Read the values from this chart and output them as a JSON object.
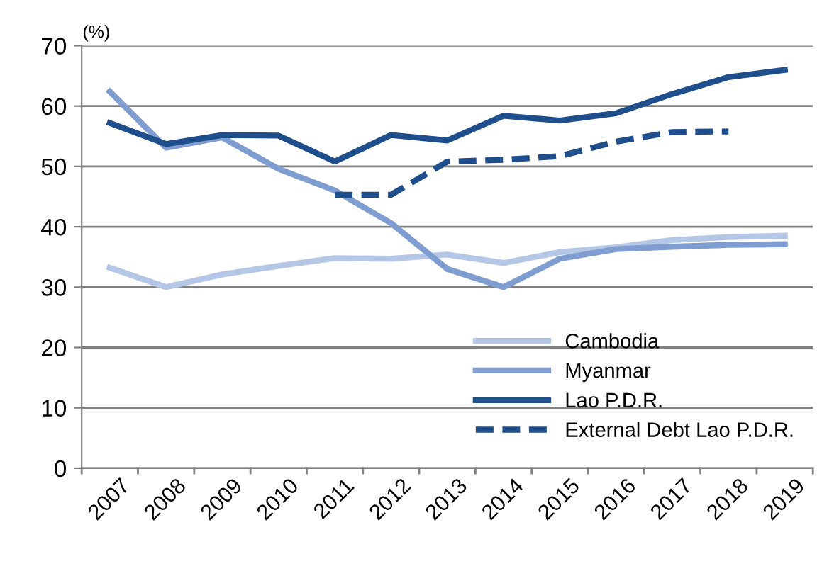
{
  "chart_data": {
    "type": "line",
    "ylabel": "(%)",
    "categories": [
      "2007",
      "2008",
      "2009",
      "2010",
      "2011",
      "2012",
      "2013",
      "2014",
      "2015",
      "2016",
      "2017",
      "2018",
      "2019"
    ],
    "series": [
      {
        "name": "Cambodia",
        "color": "#b4c7e7",
        "values": [
          33.2,
          30.0,
          32.1,
          33.5,
          34.8,
          34.7,
          35.4,
          34.0,
          35.8,
          36.6,
          37.8,
          38.3,
          38.5
        ]
      },
      {
        "name": "Myanmar",
        "color": "#7f9dd0",
        "values": [
          62.4,
          53.1,
          54.8,
          49.6,
          46.0,
          40.6,
          33.0,
          30.0,
          34.7,
          36.3,
          36.7,
          37.0,
          37.1
        ]
      },
      {
        "name": "Lao P.D.R.",
        "color": "#1f4e8c",
        "values": [
          57.2,
          53.7,
          55.2,
          55.1,
          50.8,
          55.2,
          54.3,
          58.4,
          57.6,
          58.8,
          62.0,
          64.8,
          66.0
        ]
      },
      {
        "name": "External Debt Lao P.D.R.",
        "color": "#1f4e8c",
        "line_style": "dashed",
        "values": [
          null,
          null,
          null,
          null,
          45.3,
          45.3,
          50.8,
          51.1,
          51.7,
          54.1,
          55.7,
          55.8,
          null
        ]
      }
    ],
    "ylim": [
      0,
      70
    ],
    "yticks": [
      0,
      10,
      20,
      30,
      40,
      50,
      60,
      70
    ],
    "grid": "y",
    "legend": "bottom right",
    "marker": "none",
    "line_style": "solid"
  }
}
